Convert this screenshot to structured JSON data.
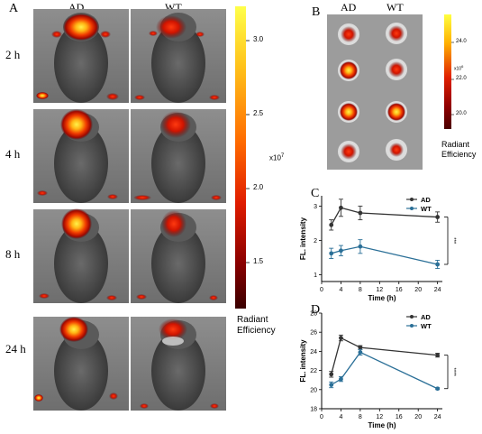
{
  "panelA": {
    "label": "A",
    "columns": [
      "AD",
      "WT"
    ],
    "rows": [
      "2 h",
      "4 h",
      "8 h",
      "24 h"
    ],
    "colorbar": {
      "ticks": [
        "3.0",
        "2.5",
        "2.0",
        "1.5"
      ],
      "scale": "x10",
      "scale_exp": "7",
      "title_line1": "Radiant",
      "title_line2": "Efficiency",
      "colors": [
        "#ffff4a",
        "#ffc21a",
        "#ff6a00",
        "#e01c00",
        "#8a0000",
        "#3a0000"
      ]
    }
  },
  "panelB": {
    "label": "B",
    "columns": [
      "AD",
      "WT"
    ],
    "colorbar": {
      "ticks": [
        "24.0",
        "22.0",
        "20.0"
      ],
      "scale": "x10",
      "scale_exp": "6",
      "title_line1": "Radiant",
      "title_line2": "Efficiency"
    }
  },
  "chart_data": [
    {
      "panel": "C",
      "type": "line",
      "xlabel": "Time (h)",
      "ylabel": "FL. intensity",
      "xlim": [
        0,
        25
      ],
      "ylim": [
        0.8,
        3.3
      ],
      "xticks": [
        0,
        4,
        8,
        12,
        16,
        20,
        24
      ],
      "yticks": [
        1,
        2,
        3
      ],
      "significance": "***",
      "legend_position": "top-right",
      "series": [
        {
          "name": "AD",
          "color": "#333333",
          "x": [
            2,
            4,
            8,
            24
          ],
          "y": [
            2.45,
            2.95,
            2.8,
            2.68
          ],
          "err": [
            0.15,
            0.25,
            0.2,
            0.15
          ]
        },
        {
          "name": "WT",
          "color": "#2a6f97",
          "x": [
            2,
            4,
            8,
            24
          ],
          "y": [
            1.62,
            1.7,
            1.82,
            1.3
          ],
          "err": [
            0.15,
            0.15,
            0.2,
            0.12
          ]
        }
      ]
    },
    {
      "panel": "D",
      "type": "line",
      "xlabel": "Time (h)",
      "ylabel": "FL. intensity",
      "xlim": [
        0,
        25
      ],
      "ylim": [
        18,
        28
      ],
      "xticks": [
        0,
        4,
        8,
        12,
        16,
        20,
        24
      ],
      "yticks": [
        18,
        20,
        22,
        24,
        26,
        28
      ],
      "significance": "****",
      "legend_position": "top-right",
      "series": [
        {
          "name": "AD",
          "color": "#333333",
          "x": [
            2,
            4,
            8,
            24
          ],
          "y": [
            21.6,
            25.4,
            24.4,
            23.6
          ],
          "err": [
            0.3,
            0.3,
            0.2,
            0.2
          ]
        },
        {
          "name": "WT",
          "color": "#2a6f97",
          "x": [
            2,
            4,
            8,
            24
          ],
          "y": [
            20.5,
            21.1,
            23.9,
            20.1
          ],
          "err": [
            0.3,
            0.25,
            0.3,
            0.1
          ]
        }
      ]
    }
  ]
}
